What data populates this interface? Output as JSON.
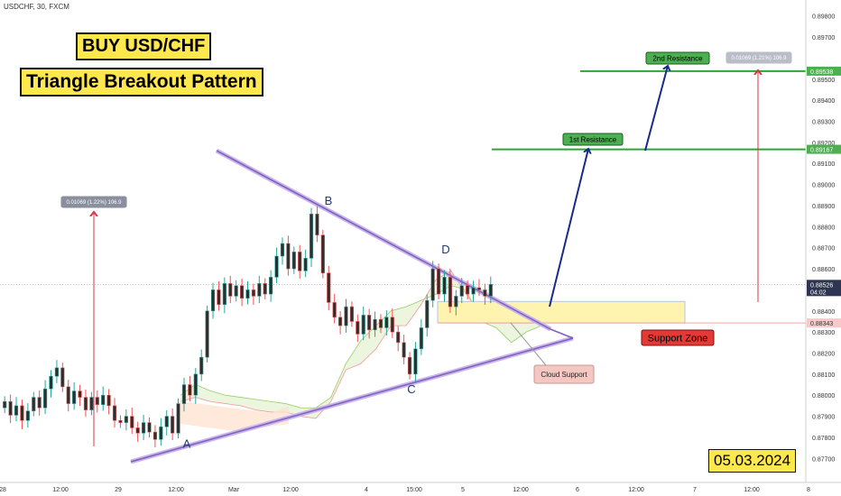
{
  "header": {
    "symbol_label": "USDCHF, 30, FXCM"
  },
  "titles": {
    "line1": "BUY USD/CHF",
    "line2": "Triangle Breakout Pattern"
  },
  "date_badge": "05.03.2024",
  "colors": {
    "up_candle": "#26a69a",
    "down_candle": "#ef5350",
    "candle_body": "#2f2f2f",
    "trendline": "#7b5fb8",
    "resistance": "#2fa33a",
    "arrow_blue": "#1a2a8a",
    "arrow_red": "#d9364b",
    "support_zone": "#fff3b0",
    "support_label_bg": "#e53935",
    "cloud_label_bg": "#f4c7c3",
    "title_bg": "#ffe84d"
  },
  "chart_data": {
    "type": "candlestick",
    "x_ticks": [
      "28",
      "12:00",
      "29",
      "12:00",
      "Mar",
      "12:00",
      "4",
      "15:00",
      "5",
      "12:00",
      "6",
      "12:00",
      "7",
      "12:00",
      "8"
    ],
    "y_axis": {
      "range": [
        0.8765,
        0.8982
      ],
      "ticks": [
        "0.87700",
        "0.87800",
        "0.87900",
        "0.88000",
        "0.88100",
        "0.88200",
        "0.88300",
        "0.88400",
        "0.88600",
        "0.88700",
        "0.88800",
        "0.88900",
        "0.89000",
        "0.89100",
        "0.89200",
        "0.89300",
        "0.89400",
        "0.89500",
        "0.89700",
        "0.89800"
      ],
      "price_labels": [
        {
          "text": "0.89538",
          "value": 0.89538,
          "kind": "resistance"
        },
        {
          "text": "0.89167",
          "value": 0.89167,
          "kind": "resistance"
        },
        {
          "text": "0.88526",
          "value": 0.88526,
          "kind": "current",
          "sub": "04:02"
        },
        {
          "text": "0.88343",
          "value": 0.88343,
          "kind": "support"
        }
      ]
    },
    "pivots": [
      {
        "label": "A",
        "value": 0.8781
      },
      {
        "label": "B",
        "value": 0.8887
      },
      {
        "label": "C",
        "value": 0.8807
      },
      {
        "label": "D",
        "value": 0.8863
      }
    ],
    "levels": [
      {
        "name": "1st Resistance",
        "value": 0.89167
      },
      {
        "name": "2nd Resistance",
        "value": 0.89538
      }
    ],
    "support_zone": {
      "label": "Support Zone",
      "from": 0.88343,
      "to": 0.88445
    },
    "annotations": {
      "cloud": "Cloud Support",
      "measure_left": "0.01069 (1.22%) 106.9",
      "measure_right": "0.01069 (1.21%) 106.9"
    },
    "close_path": [
      0.8797,
      0.87905,
      0.8795,
      0.8788,
      0.87925,
      0.8799,
      0.8794,
      0.8803,
      0.8809,
      0.8813,
      0.8804,
      0.8796,
      0.8802,
      0.8799,
      0.8793,
      0.8799,
      0.87955,
      0.88,
      0.8795,
      0.8788,
      0.8787,
      0.879,
      0.87845,
      0.8782,
      0.8787,
      0.87825,
      0.8779,
      0.8785,
      0.879,
      0.8782,
      0.8796,
      0.8805,
      0.88,
      0.881,
      0.8818,
      0.884,
      0.885,
      0.8843,
      0.8853,
      0.8847,
      0.8852,
      0.8846,
      0.885,
      0.8847,
      0.8853,
      0.8848,
      0.8856,
      0.8866,
      0.8872,
      0.886,
      0.8868,
      0.8859,
      0.8865,
      0.8886,
      0.8876,
      0.8858,
      0.8844,
      0.8837,
      0.8833,
      0.8842,
      0.8835,
      0.8829,
      0.8838,
      0.8831,
      0.8836,
      0.8832,
      0.8837,
      0.883,
      0.8825,
      0.8818,
      0.881,
      0.8822,
      0.8832,
      0.8845,
      0.886,
      0.8848,
      0.8856,
      0.8842,
      0.8847,
      0.8852,
      0.8848,
      0.8851,
      0.885,
      0.8847,
      0.88526
    ],
    "series": [
      {
        "values": [
          0.88,
          0.8805,
          0.8802,
          0.88,
          0.8799,
          0.8798,
          0.8797,
          0.8796,
          0.8794,
          0.8794,
          0.8799,
          0.8815,
          0.8826,
          0.8833,
          0.884,
          0.8842,
          0.8845,
          0.8848,
          0.8852,
          0.885,
          0.8835,
          0.8832,
          0.8825,
          0.883,
          0.8833
        ]
      },
      {
        "values": [
          0.8797,
          0.8799,
          0.8797,
          0.8796,
          0.8795,
          0.8793,
          0.8792,
          0.8792,
          0.879,
          0.8789,
          0.8797,
          0.8812,
          0.8815,
          0.8822,
          0.8833,
          0.8833,
          0.8843,
          0.8855,
          0.8859,
          0.8848,
          0.8838,
          0.8838,
          0.8835,
          0.8838,
          0.884
        ]
      }
    ]
  }
}
